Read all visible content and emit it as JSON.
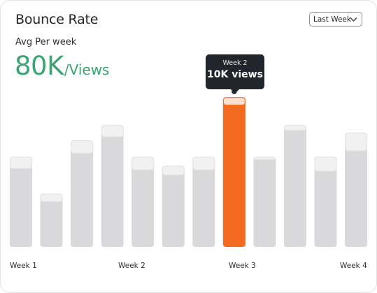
{
  "header": {
    "title": "Bounce Rate"
  },
  "filter": {
    "selected": "Last Week"
  },
  "summary": {
    "label": "Avg Per week",
    "value": "80K",
    "unit": "/Views"
  },
  "tooltip": {
    "week": "Week 2",
    "value": "10K views"
  },
  "colors": {
    "accent": "#f36b21",
    "bar": "#d9d9dc",
    "bar_cap": "#f1f1f2",
    "value_text": "#3aa572"
  },
  "chart_data": {
    "type": "bar",
    "title": "Bounce Rate",
    "xlabel": "",
    "ylabel": "",
    "x_tick_labels": [
      "Week 1",
      "Week 2",
      "Week 3",
      "Week 4"
    ],
    "grid": false,
    "highlighted_index": 7,
    "series": [
      {
        "values": [
          6.2,
          3.6,
          7.4,
          8.7,
          6.1,
          5.7,
          6.1,
          11.2,
          6.9,
          9.2,
          6.0,
          7.6
        ]
      },
      {
        "values": [
          7.1,
          4.2,
          8.4,
          9.6,
          7.1,
          6.4,
          7.1,
          11.8,
          7.1,
          9.6,
          7.1,
          9.0
        ]
      }
    ]
  }
}
